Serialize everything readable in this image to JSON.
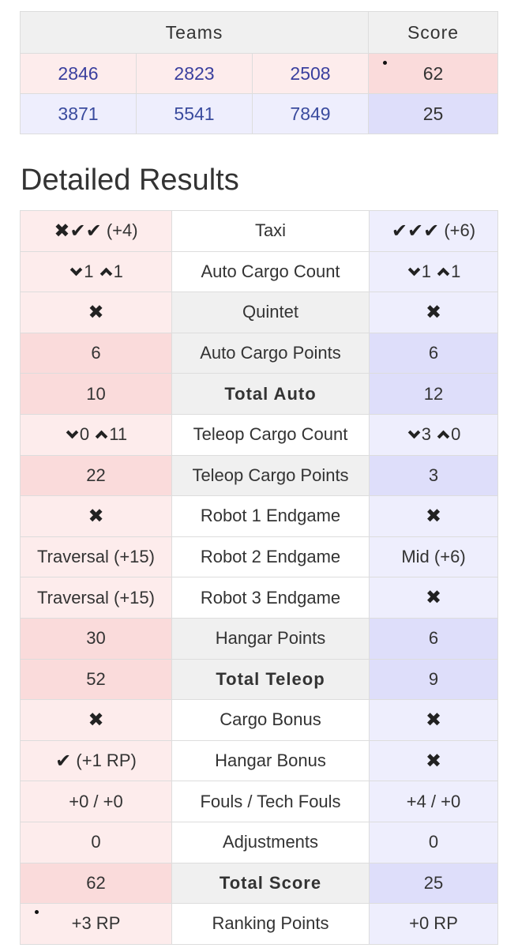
{
  "score_table": {
    "headers": {
      "teams": "Teams",
      "score": "Score"
    },
    "red": {
      "teams": [
        "2846",
        "2823",
        "2508"
      ],
      "score": "62"
    },
    "blue": {
      "teams": [
        "3871",
        "5541",
        "7849"
      ],
      "score": "25"
    }
  },
  "detailed_heading": "Detailed Results",
  "icons": {
    "check": "✔",
    "cross": "✖",
    "check_name": "check-icon",
    "cross_name": "cross-icon"
  },
  "detail": {
    "taxi": {
      "label": "Taxi",
      "red_bonus": "(+4)",
      "blue_bonus": "(+6)"
    },
    "auto_cargo_count": {
      "label": "Auto Cargo Count",
      "red_low": "1",
      "red_up": "1",
      "blue_low": "1",
      "blue_up": "1"
    },
    "quintet": {
      "label": "Quintet"
    },
    "auto_cargo_points": {
      "label": "Auto Cargo Points",
      "red": "6",
      "blue": "6"
    },
    "total_auto": {
      "label": "Total Auto",
      "red": "10",
      "blue": "12"
    },
    "teleop_cargo_count": {
      "label": "Teleop Cargo Count",
      "red_low": "0",
      "red_up": "11",
      "blue_low": "3",
      "blue_up": "0"
    },
    "teleop_cargo_points": {
      "label": "Teleop Cargo Points",
      "red": "22",
      "blue": "3"
    },
    "robot1_endgame": {
      "label": "Robot 1 Endgame"
    },
    "robot2_endgame": {
      "label": "Robot 2 Endgame",
      "red": "Traversal (+15)",
      "blue": "Mid (+6)"
    },
    "robot3_endgame": {
      "label": "Robot 3 Endgame",
      "red": "Traversal (+15)"
    },
    "hangar_points": {
      "label": "Hangar Points",
      "red": "30",
      "blue": "6"
    },
    "total_teleop": {
      "label": "Total Teleop",
      "red": "52",
      "blue": "9"
    },
    "cargo_bonus": {
      "label": "Cargo Bonus"
    },
    "hangar_bonus": {
      "label": "Hangar Bonus",
      "red_suffix": "(+1 RP)"
    },
    "fouls": {
      "label": "Fouls / Tech Fouls",
      "red": "+0 / +0",
      "blue": "+4 / +0"
    },
    "adjustments": {
      "label": "Adjustments",
      "red": "0",
      "blue": "0"
    },
    "total_score": {
      "label": "Total Score",
      "red": "62",
      "blue": "25"
    },
    "ranking_points": {
      "label": "Ranking Points",
      "red": "+3 RP",
      "blue": "+0 RP"
    }
  },
  "colors": {
    "red_light": "#fdecec",
    "red_dark": "#fadbdb",
    "blue_light": "#eeeefd",
    "blue_dark": "#dedefa",
    "team_link": "#3a3f9e"
  }
}
